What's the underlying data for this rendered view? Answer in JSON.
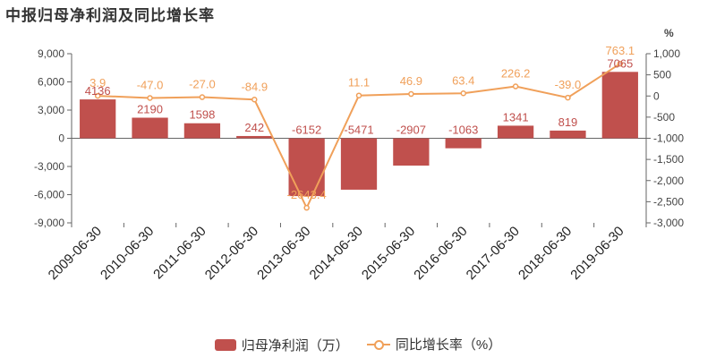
{
  "title": "中报归母净利润及同比增长率",
  "colors": {
    "bar": "#c0504d",
    "line": "#f0a05a",
    "axis": "#666666",
    "grid": "#e6e6e6"
  },
  "chart_data": {
    "type": "bar",
    "title": "中报归母净利润及同比增长率",
    "categories": [
      "2009-06-30",
      "2010-06-30",
      "2011-06-30",
      "2012-06-30",
      "2013-06-30",
      "2014-06-30",
      "2015-06-30",
      "2016-06-30",
      "2017-06-30",
      "2018-06-30",
      "2019-06-30"
    ],
    "series": [
      {
        "name": "归母净利润（万）",
        "type": "bar",
        "axis": "left",
        "values": [
          4136,
          2190,
          1598,
          242,
          -6152,
          -5471,
          -2907,
          -1063,
          1341,
          819,
          7065
        ],
        "labels": [
          "4136",
          "2190",
          "1598",
          "242",
          "-6152",
          "-5471",
          "-2907",
          "-1063",
          "1341",
          "819",
          "7065"
        ]
      },
      {
        "name": "同比增长率（%）",
        "type": "line",
        "axis": "right",
        "values": [
          3.9,
          -47.0,
          -27.0,
          -84.9,
          -2643.4,
          11.1,
          46.9,
          63.4,
          226.2,
          -39.0,
          763.1
        ],
        "labels": [
          "3.9",
          "-47.0",
          "-27.0",
          "-84.9",
          "-2643.4",
          "11.1",
          "46.9",
          "63.4",
          "226.2",
          "-39.0",
          "763.1"
        ]
      }
    ],
    "left_axis": {
      "ylim": [
        -9000,
        9000
      ],
      "ticks": [
        9000,
        6000,
        3000,
        0,
        -3000,
        -6000,
        -9000
      ],
      "tick_labels": [
        "9,000",
        "6,000",
        "3,000",
        "0",
        "-3,000",
        "-6,000",
        "-9,000"
      ]
    },
    "right_axis": {
      "unit": "%",
      "ylim": [
        -3000,
        1000
      ],
      "ticks": [
        1000,
        500,
        0,
        -500,
        -1000,
        -1500,
        -2000,
        -2500,
        -3000
      ],
      "tick_labels": [
        "1,000",
        "500",
        "0",
        "-500",
        "-1,000",
        "-1,500",
        "-2,000",
        "-2,500",
        "-3,000"
      ]
    },
    "grid": false,
    "legend": "bottom-center"
  }
}
